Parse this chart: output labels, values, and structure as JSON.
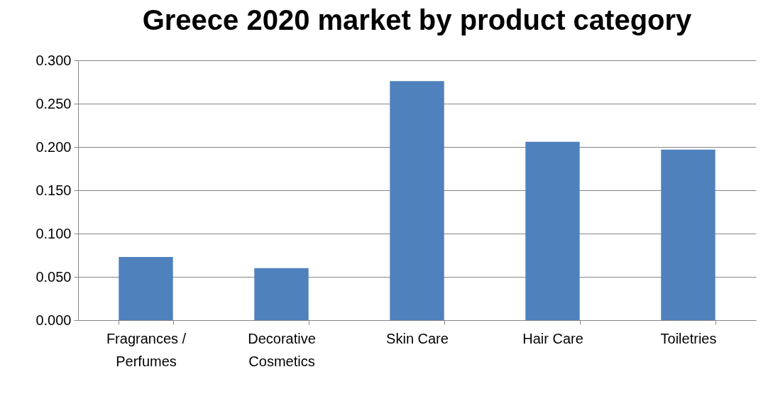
{
  "chart_data": {
    "type": "bar",
    "title": "Greece 2020 market by product category",
    "categories": [
      "Fragrances / Perfumes",
      "Decorative Cosmetics",
      "Skin Care",
      "Hair Care",
      "Toiletries"
    ],
    "values": [
      0.073,
      0.06,
      0.276,
      0.206,
      0.197
    ],
    "color": "#4f81bd",
    "ylim": [
      0,
      0.3
    ],
    "yticks": [
      {
        "value": 0,
        "label": "0.000"
      },
      {
        "value": 0.05,
        "label": "0.050"
      },
      {
        "value": 0.1,
        "label": "0.100"
      },
      {
        "value": 0.15,
        "label": "0.150"
      },
      {
        "value": 0.2,
        "label": "0.200"
      },
      {
        "value": 0.25,
        "label": "0.250"
      },
      {
        "value": 0.3,
        "label": "0.300"
      }
    ],
    "grid": "y"
  }
}
